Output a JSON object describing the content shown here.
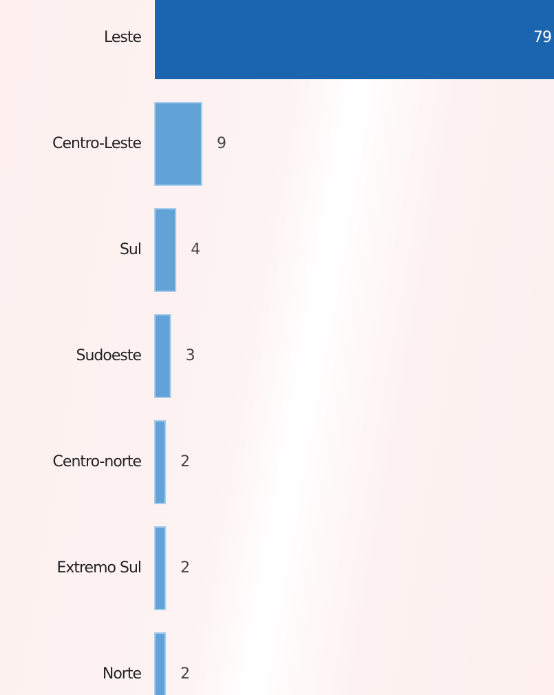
{
  "chart_data": {
    "type": "bar",
    "orientation": "horizontal",
    "categories": [
      "Leste",
      "Centro-Leste",
      "Sul",
      "Sudoeste",
      "Centro-norte",
      "Extremo Sul",
      "Norte"
    ],
    "values": [
      79,
      9,
      4,
      3,
      2,
      2,
      2
    ],
    "colors": [
      "#1a64b0",
      "#62a3d7",
      "#62a3d7",
      "#62a3d7",
      "#62a3d7",
      "#62a3d7",
      "#62a3d7"
    ]
  }
}
